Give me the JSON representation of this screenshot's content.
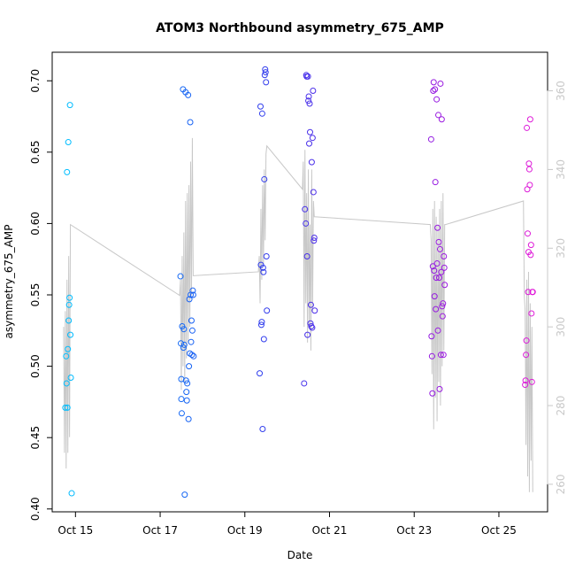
{
  "chart_data": {
    "type": "scatter",
    "title": "ATOM3 Northbound asymmetry_675_AMP",
    "xlabel": "Date",
    "ylabel": "asymmetry_675_AMP",
    "x_unit": "date (October)",
    "x_tick_values": [
      15,
      17,
      19,
      21,
      23,
      25
    ],
    "x_tick_labels": [
      "Oct 15",
      "Oct 17",
      "Oct 19",
      "Oct 21",
      "Oct 23",
      "Oct 25"
    ],
    "xlim": [
      14.45,
      26.15
    ],
    "ylim": [
      0.398,
      0.72
    ],
    "y_tick_values": [
      0.4,
      0.45,
      0.5,
      0.55,
      0.6,
      0.65,
      0.7
    ],
    "y_tick_labels": [
      "0.40",
      "0.45",
      "0.50",
      "0.55",
      "0.60",
      "0.65",
      "0.70"
    ],
    "y2lim": [
      253.0,
      369.8
    ],
    "y2_tick_values": [
      260,
      280,
      300,
      320,
      340,
      360
    ],
    "y2_tick_labels": [
      "260",
      "280",
      "300",
      "320",
      "340",
      "360"
    ],
    "y2_color": "#c8c8c8",
    "grid": false,
    "legend": "none",
    "points_note": "colour of each point follows a gradient from cyan to magenta with time",
    "gradient_colors": [
      "#00bfff",
      "#1e4cf0",
      "#6a1ae6",
      "#e01ad8"
    ],
    "points": [
      {
        "x": 14.76,
        "y": 0.471
      },
      {
        "x": 14.78,
        "y": 0.507
      },
      {
        "x": 14.79,
        "y": 0.488
      },
      {
        "x": 14.8,
        "y": 0.636
      },
      {
        "x": 14.81,
        "y": 0.471
      },
      {
        "x": 14.82,
        "y": 0.512
      },
      {
        "x": 14.83,
        "y": 0.657
      },
      {
        "x": 14.84,
        "y": 0.532
      },
      {
        "x": 14.85,
        "y": 0.543
      },
      {
        "x": 14.86,
        "y": 0.548
      },
      {
        "x": 14.87,
        "y": 0.683
      },
      {
        "x": 14.88,
        "y": 0.522
      },
      {
        "x": 14.89,
        "y": 0.492
      },
      {
        "x": 14.91,
        "y": 0.411
      },
      {
        "x": 17.48,
        "y": 0.563
      },
      {
        "x": 17.49,
        "y": 0.516
      },
      {
        "x": 17.5,
        "y": 0.491
      },
      {
        "x": 17.5,
        "y": 0.477
      },
      {
        "x": 17.51,
        "y": 0.467
      },
      {
        "x": 17.52,
        "y": 0.528
      },
      {
        "x": 17.54,
        "y": 0.694
      },
      {
        "x": 17.55,
        "y": 0.513
      },
      {
        "x": 17.56,
        "y": 0.526
      },
      {
        "x": 17.57,
        "y": 0.515
      },
      {
        "x": 17.58,
        "y": 0.41
      },
      {
        "x": 17.6,
        "y": 0.692
      },
      {
        "x": 17.61,
        "y": 0.49
      },
      {
        "x": 17.62,
        "y": 0.482
      },
      {
        "x": 17.63,
        "y": 0.476
      },
      {
        "x": 17.64,
        "y": 0.488
      },
      {
        "x": 17.66,
        "y": 0.69
      },
      {
        "x": 17.67,
        "y": 0.463
      },
      {
        "x": 17.68,
        "y": 0.5
      },
      {
        "x": 17.69,
        "y": 0.547
      },
      {
        "x": 17.7,
        "y": 0.509
      },
      {
        "x": 17.71,
        "y": 0.671
      },
      {
        "x": 17.72,
        "y": 0.55
      },
      {
        "x": 17.73,
        "y": 0.517
      },
      {
        "x": 17.74,
        "y": 0.532
      },
      {
        "x": 17.75,
        "y": 0.508
      },
      {
        "x": 17.76,
        "y": 0.525
      },
      {
        "x": 17.77,
        "y": 0.553
      },
      {
        "x": 17.78,
        "y": 0.55
      },
      {
        "x": 17.79,
        "y": 0.507
      },
      {
        "x": 19.35,
        "y": 0.495
      },
      {
        "x": 19.37,
        "y": 0.682
      },
      {
        "x": 19.38,
        "y": 0.571
      },
      {
        "x": 19.39,
        "y": 0.529
      },
      {
        "x": 19.4,
        "y": 0.531
      },
      {
        "x": 19.41,
        "y": 0.677
      },
      {
        "x": 19.42,
        "y": 0.456
      },
      {
        "x": 19.43,
        "y": 0.569
      },
      {
        "x": 19.44,
        "y": 0.566
      },
      {
        "x": 19.45,
        "y": 0.519
      },
      {
        "x": 19.46,
        "y": 0.631
      },
      {
        "x": 19.47,
        "y": 0.704
      },
      {
        "x": 19.48,
        "y": 0.708
      },
      {
        "x": 19.49,
        "y": 0.706
      },
      {
        "x": 19.5,
        "y": 0.699
      },
      {
        "x": 19.51,
        "y": 0.577
      },
      {
        "x": 19.52,
        "y": 0.539
      },
      {
        "x": 20.4,
        "y": 0.488
      },
      {
        "x": 20.42,
        "y": 0.61
      },
      {
        "x": 20.44,
        "y": 0.6
      },
      {
        "x": 20.45,
        "y": 0.704
      },
      {
        "x": 20.46,
        "y": 0.703
      },
      {
        "x": 20.47,
        "y": 0.577
      },
      {
        "x": 20.48,
        "y": 0.522
      },
      {
        "x": 20.49,
        "y": 0.703
      },
      {
        "x": 20.5,
        "y": 0.686
      },
      {
        "x": 20.51,
        "y": 0.689
      },
      {
        "x": 20.52,
        "y": 0.656
      },
      {
        "x": 20.53,
        "y": 0.684
      },
      {
        "x": 20.54,
        "y": 0.664
      },
      {
        "x": 20.55,
        "y": 0.53
      },
      {
        "x": 20.56,
        "y": 0.543
      },
      {
        "x": 20.57,
        "y": 0.528
      },
      {
        "x": 20.58,
        "y": 0.643
      },
      {
        "x": 20.59,
        "y": 0.527
      },
      {
        "x": 20.6,
        "y": 0.66
      },
      {
        "x": 20.61,
        "y": 0.693
      },
      {
        "x": 20.62,
        "y": 0.622
      },
      {
        "x": 20.63,
        "y": 0.588
      },
      {
        "x": 20.64,
        "y": 0.59
      },
      {
        "x": 20.65,
        "y": 0.539
      },
      {
        "x": 23.4,
        "y": 0.659
      },
      {
        "x": 23.41,
        "y": 0.521
      },
      {
        "x": 23.42,
        "y": 0.507
      },
      {
        "x": 23.43,
        "y": 0.481
      },
      {
        "x": 23.44,
        "y": 0.57
      },
      {
        "x": 23.45,
        "y": 0.693
      },
      {
        "x": 23.46,
        "y": 0.699
      },
      {
        "x": 23.47,
        "y": 0.567
      },
      {
        "x": 23.48,
        "y": 0.549
      },
      {
        "x": 23.49,
        "y": 0.694
      },
      {
        "x": 23.5,
        "y": 0.629
      },
      {
        "x": 23.51,
        "y": 0.54
      },
      {
        "x": 23.52,
        "y": 0.562
      },
      {
        "x": 23.53,
        "y": 0.687
      },
      {
        "x": 23.54,
        "y": 0.572
      },
      {
        "x": 23.55,
        "y": 0.597
      },
      {
        "x": 23.56,
        "y": 0.525
      },
      {
        "x": 23.57,
        "y": 0.676
      },
      {
        "x": 23.58,
        "y": 0.587
      },
      {
        "x": 23.59,
        "y": 0.562
      },
      {
        "x": 23.6,
        "y": 0.484
      },
      {
        "x": 23.61,
        "y": 0.582
      },
      {
        "x": 23.62,
        "y": 0.698
      },
      {
        "x": 23.63,
        "y": 0.508
      },
      {
        "x": 23.64,
        "y": 0.566
      },
      {
        "x": 23.65,
        "y": 0.673
      },
      {
        "x": 23.66,
        "y": 0.542
      },
      {
        "x": 23.67,
        "y": 0.535
      },
      {
        "x": 23.68,
        "y": 0.544
      },
      {
        "x": 23.69,
        "y": 0.508
      },
      {
        "x": 23.7,
        "y": 0.577
      },
      {
        "x": 23.71,
        "y": 0.569
      },
      {
        "x": 23.72,
        "y": 0.557
      },
      {
        "x": 25.62,
        "y": 0.487
      },
      {
        "x": 25.63,
        "y": 0.49
      },
      {
        "x": 25.64,
        "y": 0.508
      },
      {
        "x": 25.65,
        "y": 0.518
      },
      {
        "x": 25.66,
        "y": 0.667
      },
      {
        "x": 25.67,
        "y": 0.624
      },
      {
        "x": 25.68,
        "y": 0.593
      },
      {
        "x": 25.69,
        "y": 0.552
      },
      {
        "x": 25.7,
        "y": 0.58
      },
      {
        "x": 25.71,
        "y": 0.642
      },
      {
        "x": 25.72,
        "y": 0.638
      },
      {
        "x": 25.73,
        "y": 0.627
      },
      {
        "x": 25.74,
        "y": 0.673
      },
      {
        "x": 25.75,
        "y": 0.578
      },
      {
        "x": 25.76,
        "y": 0.585
      },
      {
        "x": 25.77,
        "y": 0.537
      },
      {
        "x": 25.78,
        "y": 0.489
      },
      {
        "x": 25.79,
        "y": 0.552
      },
      {
        "x": 25.8,
        "y": 0.552
      }
    ],
    "line_series": {
      "axis": "right",
      "color": "#c8c8c8",
      "x": [
        14.72,
        14.74,
        14.76,
        14.78,
        14.8,
        14.82,
        14.84,
        14.86,
        14.88,
        17.46,
        17.48,
        17.5,
        17.52,
        17.54,
        17.56,
        17.58,
        17.6,
        17.62,
        17.64,
        17.66,
        17.68,
        17.7,
        17.72,
        17.74,
        17.76,
        17.78,
        19.32,
        19.34,
        19.36,
        19.38,
        19.4,
        19.42,
        19.44,
        19.46,
        19.48,
        19.5,
        19.52,
        20.36,
        20.38,
        20.4,
        20.42,
        20.44,
        20.46,
        20.48,
        20.5,
        20.52,
        20.54,
        20.56,
        20.58,
        20.6,
        20.62,
        20.64,
        23.38,
        23.4,
        23.42,
        23.44,
        23.46,
        23.48,
        23.5,
        23.52,
        23.54,
        23.56,
        23.58,
        23.6,
        23.62,
        23.64,
        23.66,
        23.68,
        23.7,
        23.72,
        23.74,
        25.58,
        25.6,
        25.62,
        25.64,
        25.66,
        25.68,
        25.7,
        25.72,
        25.74,
        25.76,
        25.78,
        25.8
      ],
      "y": [
        300,
        268,
        304,
        264,
        312,
        268,
        318,
        272,
        326,
        308,
        312,
        284,
        318,
        290,
        324,
        286,
        332,
        292,
        334,
        296,
        336,
        300,
        342,
        308,
        348,
        313,
        314,
        318,
        306,
        330,
        312,
        336,
        316,
        340,
        322,
        344,
        346,
        335,
        342,
        300,
        345,
        306,
        334,
        296,
        340,
        300,
        326,
        294,
        340,
        304,
        332,
        328,
        326,
        322,
        288,
        330,
        274,
        332,
        282,
        328,
        276,
        326,
        286,
        330,
        280,
        332,
        290,
        334,
        294,
        326,
        326,
        332,
        308,
        304,
        270,
        312,
        262,
        314,
        258,
        306,
        266,
        300,
        258
      ]
    }
  }
}
